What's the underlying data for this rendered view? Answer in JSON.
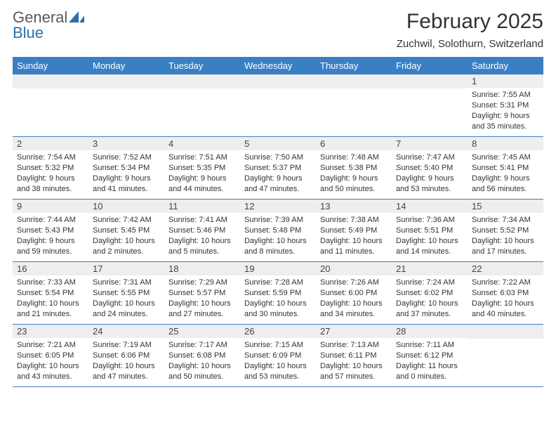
{
  "logo": {
    "text1": "General",
    "text2": "Blue"
  },
  "title": "February 2025",
  "location": "Zuchwil, Solothurn, Switzerland",
  "colors": {
    "header_bar": "#3a7fc4",
    "header_text": "#ffffff",
    "daynum_bg": "#eeeeee",
    "row_divider": "#3a7fc4",
    "body_text": "#333333",
    "logo_gray": "#5a5a5a",
    "logo_blue": "#2f6fa8"
  },
  "weekdays": [
    "Sunday",
    "Monday",
    "Tuesday",
    "Wednesday",
    "Thursday",
    "Friday",
    "Saturday"
  ],
  "weeks": [
    [
      {},
      {},
      {},
      {},
      {},
      {},
      {
        "n": "1",
        "sunrise": "7:55 AM",
        "sunset": "5:31 PM",
        "daylight": "9 hours and 35 minutes."
      }
    ],
    [
      {
        "n": "2",
        "sunrise": "7:54 AM",
        "sunset": "5:32 PM",
        "daylight": "9 hours and 38 minutes."
      },
      {
        "n": "3",
        "sunrise": "7:52 AM",
        "sunset": "5:34 PM",
        "daylight": "9 hours and 41 minutes."
      },
      {
        "n": "4",
        "sunrise": "7:51 AM",
        "sunset": "5:35 PM",
        "daylight": "9 hours and 44 minutes."
      },
      {
        "n": "5",
        "sunrise": "7:50 AM",
        "sunset": "5:37 PM",
        "daylight": "9 hours and 47 minutes."
      },
      {
        "n": "6",
        "sunrise": "7:48 AM",
        "sunset": "5:38 PM",
        "daylight": "9 hours and 50 minutes."
      },
      {
        "n": "7",
        "sunrise": "7:47 AM",
        "sunset": "5:40 PM",
        "daylight": "9 hours and 53 minutes."
      },
      {
        "n": "8",
        "sunrise": "7:45 AM",
        "sunset": "5:41 PM",
        "daylight": "9 hours and 56 minutes."
      }
    ],
    [
      {
        "n": "9",
        "sunrise": "7:44 AM",
        "sunset": "5:43 PM",
        "daylight": "9 hours and 59 minutes."
      },
      {
        "n": "10",
        "sunrise": "7:42 AM",
        "sunset": "5:45 PM",
        "daylight": "10 hours and 2 minutes."
      },
      {
        "n": "11",
        "sunrise": "7:41 AM",
        "sunset": "5:46 PM",
        "daylight": "10 hours and 5 minutes."
      },
      {
        "n": "12",
        "sunrise": "7:39 AM",
        "sunset": "5:48 PM",
        "daylight": "10 hours and 8 minutes."
      },
      {
        "n": "13",
        "sunrise": "7:38 AM",
        "sunset": "5:49 PM",
        "daylight": "10 hours and 11 minutes."
      },
      {
        "n": "14",
        "sunrise": "7:36 AM",
        "sunset": "5:51 PM",
        "daylight": "10 hours and 14 minutes."
      },
      {
        "n": "15",
        "sunrise": "7:34 AM",
        "sunset": "5:52 PM",
        "daylight": "10 hours and 17 minutes."
      }
    ],
    [
      {
        "n": "16",
        "sunrise": "7:33 AM",
        "sunset": "5:54 PM",
        "daylight": "10 hours and 21 minutes."
      },
      {
        "n": "17",
        "sunrise": "7:31 AM",
        "sunset": "5:55 PM",
        "daylight": "10 hours and 24 minutes."
      },
      {
        "n": "18",
        "sunrise": "7:29 AM",
        "sunset": "5:57 PM",
        "daylight": "10 hours and 27 minutes."
      },
      {
        "n": "19",
        "sunrise": "7:28 AM",
        "sunset": "5:59 PM",
        "daylight": "10 hours and 30 minutes."
      },
      {
        "n": "20",
        "sunrise": "7:26 AM",
        "sunset": "6:00 PM",
        "daylight": "10 hours and 34 minutes."
      },
      {
        "n": "21",
        "sunrise": "7:24 AM",
        "sunset": "6:02 PM",
        "daylight": "10 hours and 37 minutes."
      },
      {
        "n": "22",
        "sunrise": "7:22 AM",
        "sunset": "6:03 PM",
        "daylight": "10 hours and 40 minutes."
      }
    ],
    [
      {
        "n": "23",
        "sunrise": "7:21 AM",
        "sunset": "6:05 PM",
        "daylight": "10 hours and 43 minutes."
      },
      {
        "n": "24",
        "sunrise": "7:19 AM",
        "sunset": "6:06 PM",
        "daylight": "10 hours and 47 minutes."
      },
      {
        "n": "25",
        "sunrise": "7:17 AM",
        "sunset": "6:08 PM",
        "daylight": "10 hours and 50 minutes."
      },
      {
        "n": "26",
        "sunrise": "7:15 AM",
        "sunset": "6:09 PM",
        "daylight": "10 hours and 53 minutes."
      },
      {
        "n": "27",
        "sunrise": "7:13 AM",
        "sunset": "6:11 PM",
        "daylight": "10 hours and 57 minutes."
      },
      {
        "n": "28",
        "sunrise": "7:11 AM",
        "sunset": "6:12 PM",
        "daylight": "11 hours and 0 minutes."
      },
      {}
    ]
  ],
  "labels": {
    "sunrise": "Sunrise:",
    "sunset": "Sunset:",
    "daylight": "Daylight:"
  }
}
